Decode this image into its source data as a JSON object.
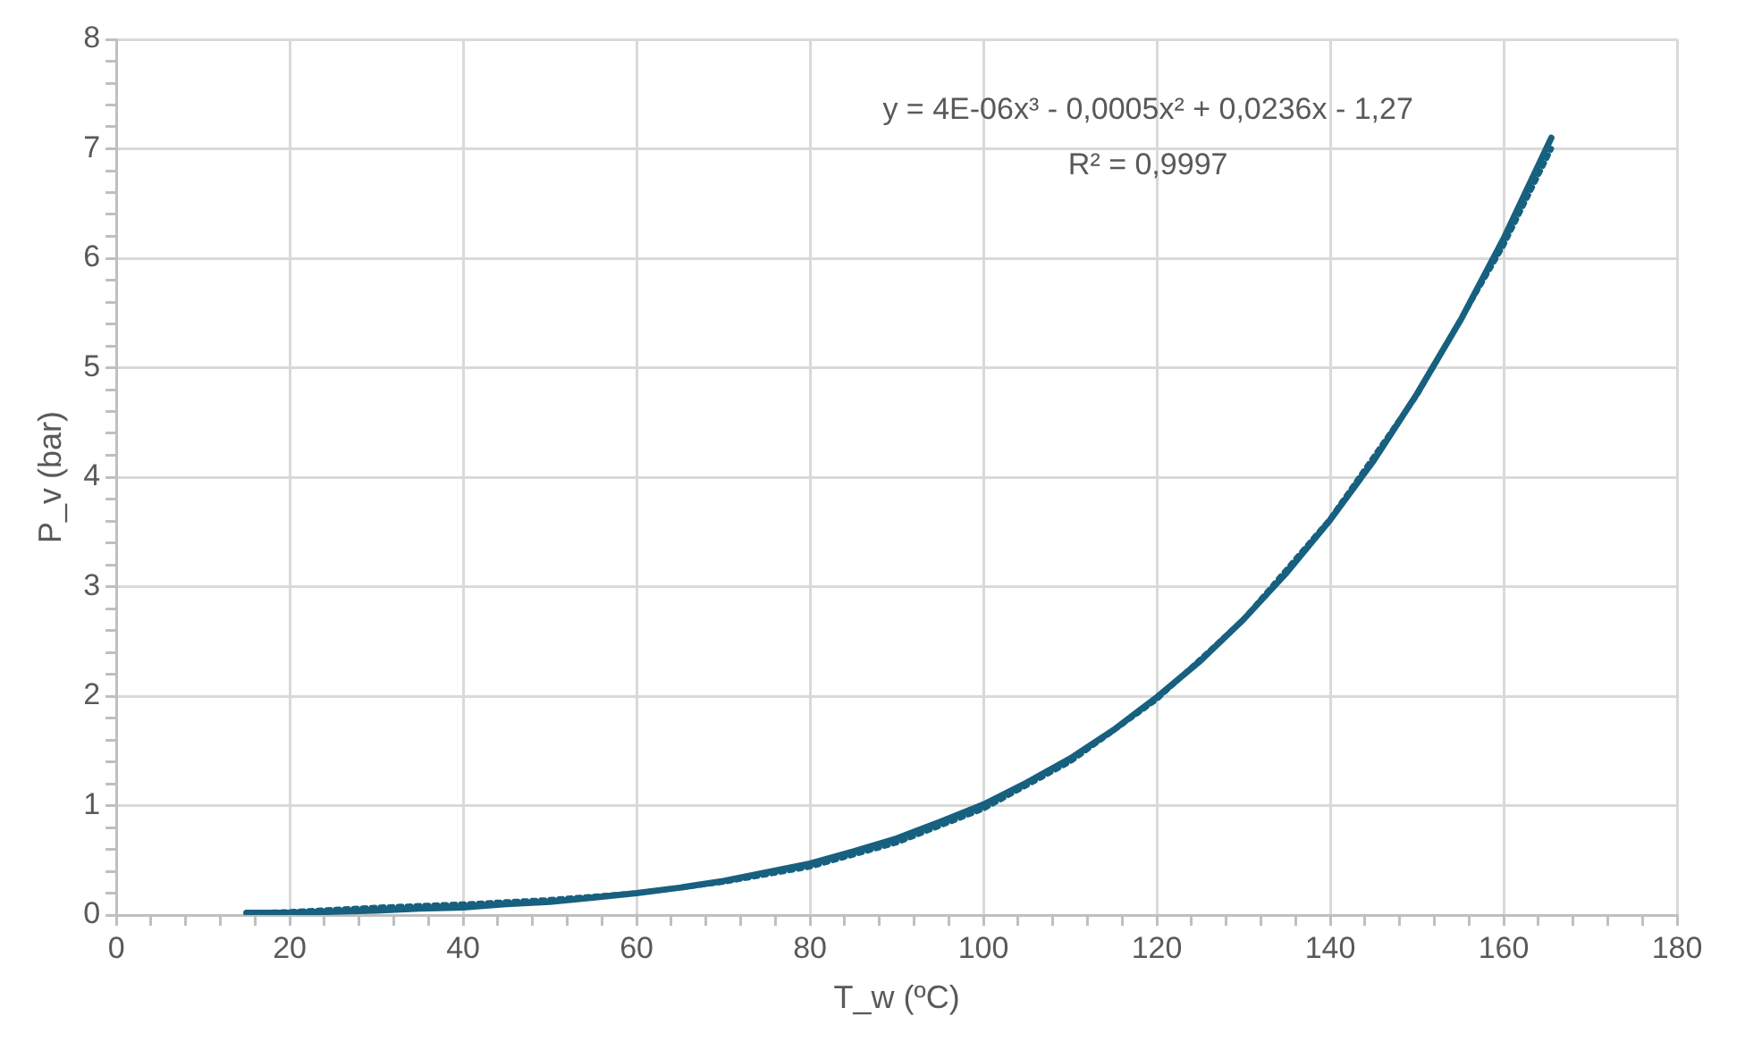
{
  "chart_data": {
    "type": "line",
    "xlabel": "T_w (ºC)",
    "ylabel": "P_v (bar)",
    "annotations": [
      "y = 4E-06x³ - 0,0005x² + 0,0236x - 1,27",
      "R² = 0,9997"
    ],
    "series": [
      {
        "color": "#17607f",
        "line_style": "solid",
        "x": [
          15,
          20,
          25,
          30,
          35,
          40,
          45,
          50,
          55,
          60,
          65,
          70,
          75,
          80,
          85,
          90,
          95,
          100,
          105,
          110,
          115,
          120,
          125,
          130,
          135,
          140,
          145,
          150,
          155,
          160,
          165.5
        ],
        "values": [
          0.02,
          0.02,
          0.03,
          0.04,
          0.06,
          0.07,
          0.1,
          0.12,
          0.16,
          0.2,
          0.25,
          0.31,
          0.39,
          0.47,
          0.58,
          0.7,
          0.85,
          1.01,
          1.21,
          1.43,
          1.69,
          1.99,
          2.32,
          2.7,
          3.13,
          3.61,
          4.15,
          4.76,
          5.43,
          6.18,
          7.1
        ]
      },
      {
        "color": "#17607f",
        "line_style": "dotted",
        "x": [
          15,
          20,
          30,
          40,
          50,
          60,
          70,
          80,
          90,
          100,
          110,
          120,
          130,
          140,
          150,
          160,
          165.5
        ],
        "values": [
          0.02,
          0.03,
          0.07,
          0.1,
          0.14,
          0.2,
          0.3,
          0.44,
          0.66,
          0.97,
          1.4,
          1.97,
          2.7,
          3.62,
          4.75,
          6.12,
          7.0
        ]
      }
    ],
    "xlim": [
      0,
      180
    ],
    "xticks": [
      0,
      {
        "value": 4,
        "label": null
      },
      {
        "value": 8,
        "label": null
      },
      {
        "value": 12,
        "label": null
      },
      {
        "value": 16,
        "label": null
      },
      20,
      {
        "value": 24,
        "label": null
      },
      {
        "value": 28,
        "label": null
      },
      {
        "value": 32,
        "label": null
      },
      {
        "value": 36,
        "label": null
      },
      40,
      {
        "value": 44,
        "label": null
      },
      {
        "value": 48,
        "label": null
      },
      {
        "value": 52,
        "label": null
      },
      {
        "value": 56,
        "label": null
      },
      60,
      {
        "value": 64,
        "label": null
      },
      {
        "value": 68,
        "label": null
      },
      {
        "value": 72,
        "label": null
      },
      {
        "value": 76,
        "label": null
      },
      80,
      {
        "value": 84,
        "label": null
      },
      {
        "value": 88,
        "label": null
      },
      {
        "value": 92,
        "label": null
      },
      {
        "value": 96,
        "label": null
      },
      100,
      {
        "value": 104,
        "label": null
      },
      {
        "value": 108,
        "label": null
      },
      {
        "value": 112,
        "label": null
      },
      {
        "value": 116,
        "label": null
      },
      120,
      {
        "value": 124,
        "label": null
      },
      {
        "value": 128,
        "label": null
      },
      {
        "value": 132,
        "label": null
      },
      {
        "value": 136,
        "label": null
      },
      140,
      {
        "value": 144,
        "label": null
      },
      {
        "value": 148,
        "label": null
      },
      {
        "value": 152,
        "label": null
      },
      {
        "value": 156,
        "label": null
      },
      160,
      {
        "value": 164,
        "label": null
      },
      {
        "value": 168,
        "label": null
      },
      {
        "value": 172,
        "label": null
      },
      {
        "value": 176,
        "label": null
      },
      180
    ],
    "ylim": [
      0,
      8
    ],
    "yticks": [
      0,
      {
        "value": 0.2,
        "label": null
      },
      {
        "value": 0.4,
        "label": null
      },
      {
        "value": 0.6,
        "label": null
      },
      {
        "value": 0.8,
        "label": null
      },
      1,
      {
        "value": 1.2,
        "label": null
      },
      {
        "value": 1.4,
        "label": null
      },
      {
        "value": 1.6,
        "label": null
      },
      {
        "value": 1.8,
        "label": null
      },
      2,
      {
        "value": 2.2,
        "label": null
      },
      {
        "value": 2.4,
        "label": null
      },
      {
        "value": 2.6,
        "label": null
      },
      {
        "value": 2.8,
        "label": null
      },
      3,
      {
        "value": 3.2,
        "label": null
      },
      {
        "value": 3.4,
        "label": null
      },
      {
        "value": 3.6,
        "label": null
      },
      {
        "value": 3.8,
        "label": null
      },
      4,
      {
        "value": 4.2,
        "label": null
      },
      {
        "value": 4.4,
        "label": null
      },
      {
        "value": 4.6,
        "label": null
      },
      {
        "value": 4.8,
        "label": null
      },
      5,
      {
        "value": 5.2,
        "label": null
      },
      {
        "value": 5.4,
        "label": null
      },
      {
        "value": 5.6,
        "label": null
      },
      {
        "value": 5.8,
        "label": null
      },
      6,
      {
        "value": 6.2,
        "label": null
      },
      {
        "value": 6.4,
        "label": null
      },
      {
        "value": 6.6,
        "label": null
      },
      {
        "value": 6.8,
        "label": null
      },
      7,
      {
        "value": 7.2,
        "label": null
      },
      {
        "value": 7.4,
        "label": null
      },
      {
        "value": 7.6,
        "label": null
      },
      {
        "value": 7.8,
        "label": null
      },
      8
    ],
    "grid": true,
    "legend": false,
    "marker": "none"
  }
}
